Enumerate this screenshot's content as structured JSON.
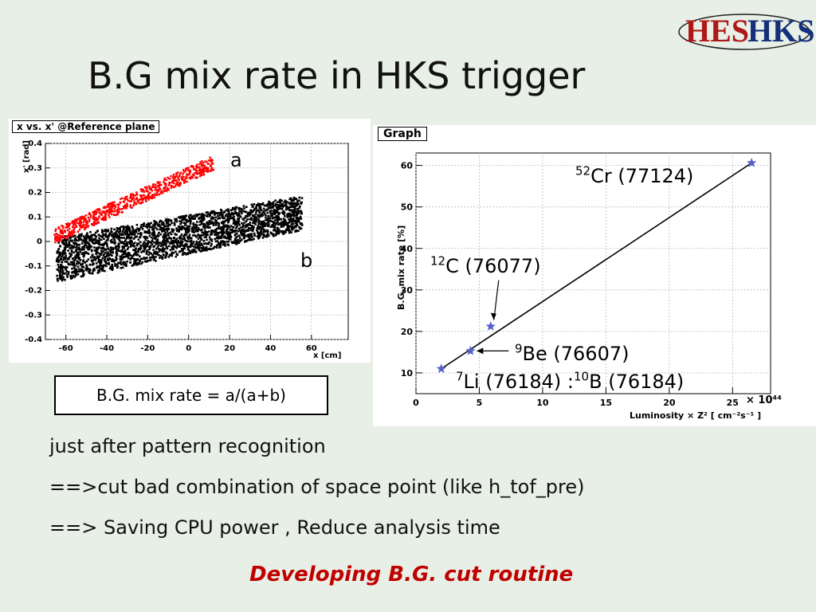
{
  "title": "B.G mix rate in HKS trigger",
  "logo": {
    "left": "HES",
    "right": "HKS"
  },
  "plot1": {
    "box_title": "x vs. x' @Reference plane",
    "xlabel": "x [cm]",
    "ylabel": "x' [rad]",
    "xticks": [
      "-60",
      "-40",
      "-20",
      "0",
      "20",
      "40",
      "60"
    ],
    "yticks": [
      "0.4",
      "0.3",
      "0.2",
      "0.1",
      "0",
      "-0.1",
      "-0.2",
      "-0.3",
      "-0.4"
    ],
    "label_a": "a",
    "label_b": "b",
    "colors": {
      "a": "#ff0000",
      "b": "#000000"
    }
  },
  "formula": "B.G. mix rate = a/(a+b)",
  "chart_data": {
    "type": "line",
    "box_title": "Graph",
    "xlabel": "Luminosity × Z² [ cm⁻²s⁻¹ ]",
    "ylabel": "B.G. mix rate [%]",
    "x_scale_label": "× 10⁴⁴",
    "xlim": [
      0,
      28
    ],
    "ylim": [
      5,
      63
    ],
    "xticks": [
      0,
      5,
      10,
      15,
      20,
      25
    ],
    "yticks": [
      10,
      20,
      30,
      40,
      50,
      60
    ],
    "series": [
      {
        "points": [
          {
            "x": 2.0,
            "y": 11.0,
            "label": "⁷Li (76184) ¹⁰B (76184)"
          },
          {
            "x": 4.3,
            "y": 15.3,
            "label": "⁹Be (76607)"
          },
          {
            "x": 5.9,
            "y": 21.2,
            "label": "¹²C (76077)"
          },
          {
            "x": 26.5,
            "y": 60.6,
            "label": "⁵²Cr (77124)"
          }
        ],
        "fit": [
          [
            2.0,
            11.0
          ],
          [
            26.5,
            60.6
          ]
        ],
        "color": "#5560c8"
      }
    ],
    "annotations": {
      "cr": {
        "sup": "52",
        "text": "Cr (77124)"
      },
      "c": {
        "sup": "12",
        "text": "C (76077)"
      },
      "be": {
        "sup": "9",
        "text": "Be (76607)"
      },
      "li": {
        "sup": "7",
        "text": "Li (76184) :"
      },
      "b": {
        "sup": "10",
        "text": "B (76184)"
      }
    }
  },
  "bullets": [
    "just after pattern recognition",
    "==>cut bad combination of space point (like h_tof_pre)",
    "==> Saving CPU power , Reduce analysis time"
  ],
  "highlight": "Developing  B.G. cut routine"
}
